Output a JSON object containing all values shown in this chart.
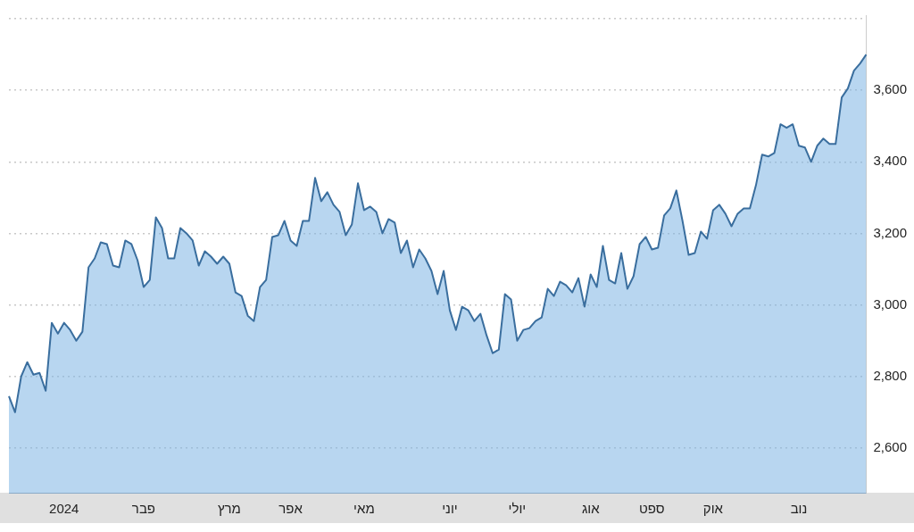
{
  "chart_data": {
    "type": "area",
    "categories": [
      null,
      null,
      null,
      null,
      null,
      null,
      null,
      null,
      null,
      "2024",
      null,
      null,
      null,
      null,
      null,
      null,
      null,
      null,
      null,
      null,
      null,
      null,
      "פבר",
      null,
      null,
      null,
      null,
      null,
      null,
      null,
      null,
      null,
      null,
      null,
      null,
      null,
      "מרץ",
      null,
      null,
      null,
      null,
      null,
      null,
      null,
      null,
      null,
      "אפר",
      null,
      null,
      null,
      null,
      null,
      null,
      null,
      null,
      null,
      null,
      null,
      "מאי",
      null,
      null,
      null,
      null,
      null,
      null,
      null,
      null,
      null,
      null,
      null,
      null,
      null,
      "יוני",
      null,
      null,
      null,
      null,
      null,
      null,
      null,
      null,
      null,
      null,
      "יולי",
      null,
      null,
      null,
      null,
      null,
      null,
      null,
      null,
      null,
      null,
      null,
      "אוג",
      null,
      null,
      null,
      null,
      null,
      null,
      null,
      null,
      null,
      "ספט",
      null,
      null,
      null,
      null,
      null,
      null,
      null,
      null,
      null,
      "אוק",
      null,
      null,
      null,
      null,
      null,
      null,
      null,
      null,
      null,
      null,
      null,
      null,
      null,
      "נוב",
      null,
      null,
      null,
      null,
      null,
      null,
      null,
      null,
      null,
      null,
      null
    ],
    "series": [
      {
        "color": "#3a6e9e",
        "values": [
          2745,
          2700,
          2800,
          2840,
          2805,
          2810,
          2760,
          2950,
          2920,
          2950,
          2930,
          2900,
          2925,
          3105,
          3130,
          3175,
          3170,
          3110,
          3105,
          3180,
          3170,
          3125,
          3050,
          3070,
          3245,
          3215,
          3130,
          3130,
          3215,
          3200,
          3180,
          3110,
          3150,
          3135,
          3115,
          3135,
          3115,
          3035,
          3025,
          2970,
          2955,
          3050,
          3070,
          3190,
          3195,
          3235,
          3180,
          3165,
          3235,
          3235,
          3355,
          3290,
          3315,
          3280,
          3260,
          3195,
          3225,
          3340,
          3265,
          3275,
          3260,
          3200,
          3240,
          3230,
          3145,
          3180,
          3105,
          3155,
          3130,
          3095,
          3030,
          3095,
          2985,
          2930,
          2995,
          2985,
          2955,
          2975,
          2915,
          2865,
          2875,
          3030,
          3015,
          2900,
          2930,
          2935,
          2955,
          2965,
          3045,
          3025,
          3065,
          3055,
          3035,
          3075,
          2995,
          3085,
          3050,
          3165,
          3070,
          3060,
          3145,
          3045,
          3080,
          3170,
          3190,
          3155,
          3160,
          3250,
          3270,
          3320,
          3235,
          3140,
          3145,
          3205,
          3185,
          3265,
          3280,
          3255,
          3220,
          3255,
          3270,
          3270,
          3335,
          3420,
          3415,
          3425,
          3505,
          3495,
          3505,
          3445,
          3440,
          3400,
          3445,
          3465,
          3450,
          3450,
          3580,
          3605,
          3655,
          3675,
          3700
        ]
      }
    ],
    "ylim": [
      2475,
      3810
    ],
    "yticks": [
      {
        "value": 2600,
        "label": "2,600"
      },
      {
        "value": 2800,
        "label": "2,800"
      },
      {
        "value": 3000,
        "label": "3,000"
      },
      {
        "value": 3200,
        "label": "3,200"
      },
      {
        "value": 3400,
        "label": "3,400"
      },
      {
        "value": 3600,
        "label": "3,600"
      },
      {
        "value": 3800,
        "label": null
      }
    ],
    "grid": "y",
    "legend": false
  }
}
